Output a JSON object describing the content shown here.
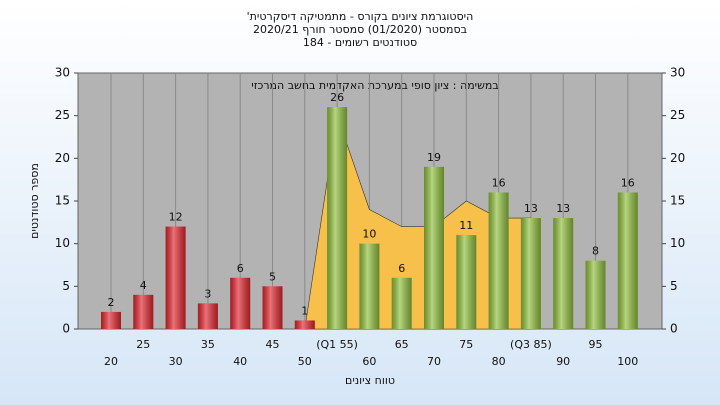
{
  "chart_data": {
    "type": "bar",
    "title": "'היסטוגרמת ציונים בקורס - מתמטיקה דיסקרטית",
    "subtitle": "בסמסטר (01/2020) סמסטר חורף 2020/21",
    "subtitle2": "סטודנטים רשומים - 184",
    "annotation": "במשימה : ציון סופי במערכת האקדמית בחשב המרכזי",
    "xlabel": "טווח ציונים",
    "ylabel": "מספר סטודנטים",
    "categories": [
      "20",
      "25",
      "30",
      "35",
      "40",
      "45",
      "50",
      "(Q1 55)",
      "60",
      "65",
      "70",
      "75",
      "80",
      "(Q3 85)",
      "90",
      "95",
      "100"
    ],
    "series": [
      {
        "values": [
          2,
          4,
          12,
          3,
          6,
          5,
          1,
          26,
          10,
          6,
          19,
          11,
          16,
          13,
          13,
          8,
          16
        ],
        "colors": [
          "#e0262e",
          "#e0262e",
          "#e0262e",
          "#e0262e",
          "#e0262e",
          "#e0262e",
          "#e0262e",
          "#8fbf3c",
          "#8fbf3c",
          "#8fbf3c",
          "#8fbf3c",
          "#8fbf3c",
          "#8fbf3c",
          "#8fbf3c",
          "#8fbf3c",
          "#8fbf3c",
          "#8fbf3c"
        ]
      },
      {
        "type": "area",
        "color": "#f7c04a",
        "values": [
          null,
          null,
          null,
          null,
          null,
          null,
          0,
          25,
          14,
          12,
          12,
          15,
          13,
          13,
          null,
          null,
          null
        ]
      }
    ],
    "ylim": [
      0,
      30
    ],
    "yticks": [
      0,
      5,
      10,
      15,
      20,
      25,
      30
    ],
    "y2lim": [
      0,
      30
    ],
    "y2ticks": [
      0,
      5,
      10,
      15,
      20,
      25,
      30
    ],
    "grid": true
  }
}
